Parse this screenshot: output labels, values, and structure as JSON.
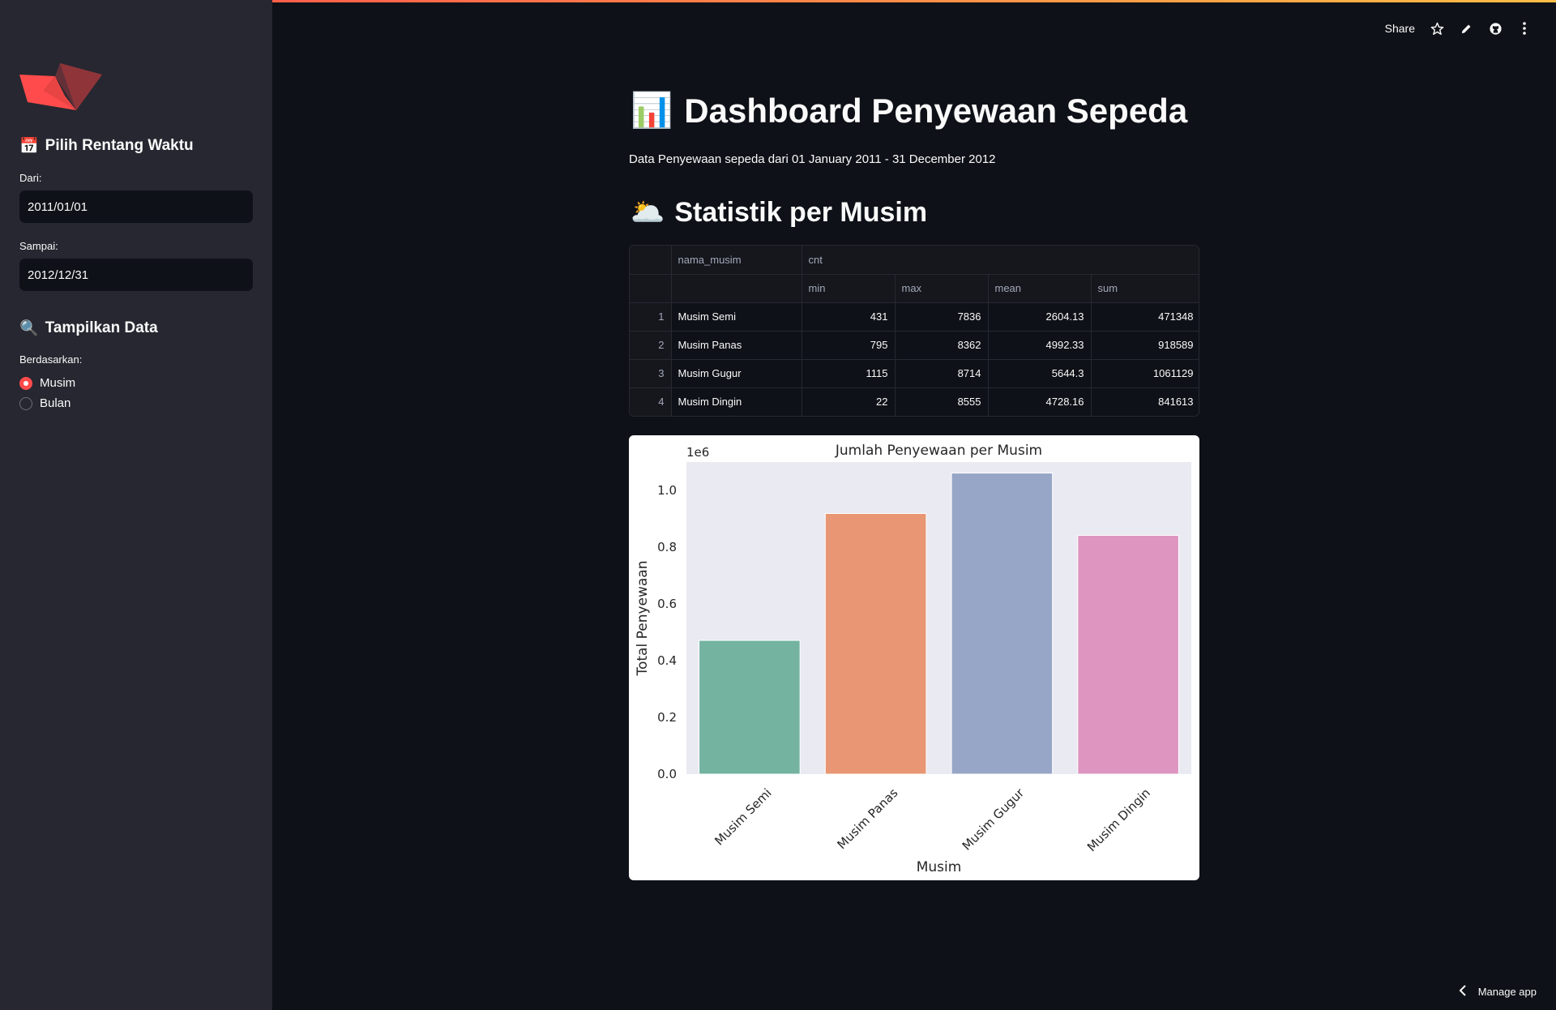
{
  "sidebar": {
    "date_heading": "Pilih Rentang Waktu",
    "from_label": "Dari:",
    "from_value": "2011/01/01",
    "to_label": "Sampai:",
    "to_value": "2012/12/31",
    "display_heading": "Tampilkan Data",
    "based_on_label": "Berdasarkan:",
    "options": [
      {
        "label": "Musim",
        "selected": true
      },
      {
        "label": "Bulan",
        "selected": false
      }
    ]
  },
  "topbar": {
    "share_label": "Share",
    "icons": [
      "star-icon",
      "pencil-icon",
      "github-icon",
      "more-vertical-icon"
    ]
  },
  "main": {
    "title_emoji": "📊",
    "title": "Dashboard Penyewaan Sepeda",
    "subtitle": "Data Penyewaan sepeda dari 01 January 2011 - 31 December 2012",
    "section_emoji": "🌥️",
    "section_title": "Statistik per Musim"
  },
  "table": {
    "header_top": [
      "nama_musim",
      "cnt"
    ],
    "header_sub": [
      "min",
      "max",
      "mean",
      "sum"
    ],
    "rows": [
      {
        "idx": "1",
        "nama": "Musim Semi",
        "min": "431",
        "max": "7836",
        "mean": "2604.13",
        "sum": "471348"
      },
      {
        "idx": "2",
        "nama": "Musim Panas",
        "min": "795",
        "max": "8362",
        "mean": "4992.33",
        "sum": "918589"
      },
      {
        "idx": "3",
        "nama": "Musim Gugur",
        "min": "1115",
        "max": "8714",
        "mean": "5644.3",
        "sum": "1061129"
      },
      {
        "idx": "4",
        "nama": "Musim Dingin",
        "min": "22",
        "max": "8555",
        "mean": "4728.16",
        "sum": "841613"
      }
    ]
  },
  "chart_data": {
    "type": "bar",
    "title": "Jumlah Penyewaan per Musim",
    "xlabel": "Musim",
    "ylabel": "Total Penyewaan",
    "offset_label": "1e6",
    "categories": [
      "Musim Semi",
      "Musim Panas",
      "Musim Gugur",
      "Musim Dingin"
    ],
    "values": [
      471348,
      918589,
      1061129,
      841613
    ],
    "colors": [
      "#73b3a0",
      "#e89673",
      "#97a6c6",
      "#de95c0"
    ],
    "ylim": [
      0,
      1.1
    ],
    "yticks": [
      "0.0",
      "0.2",
      "0.4",
      "0.6",
      "0.8",
      "1.0"
    ],
    "grid": false,
    "background": "#eaeaf2"
  },
  "footer": {
    "manage_label": "Manage app"
  }
}
